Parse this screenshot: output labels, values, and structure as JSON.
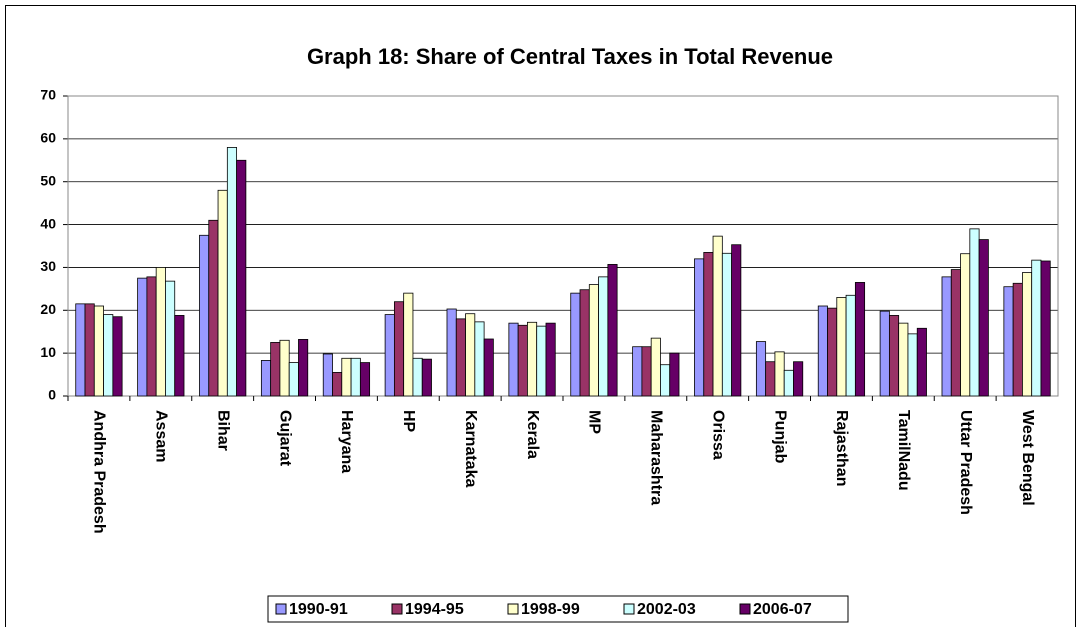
{
  "chart_data": {
    "type": "bar",
    "title": "Graph 18: Share of Central Taxes in Total Revenue",
    "categories": [
      "Andhra Pradesh",
      "Assam",
      "Bihar",
      "Gujarat",
      "Haryana",
      "HP",
      "Karnataka",
      "Kerala",
      "MP",
      "Maharashtra",
      "Orissa",
      "Punjab",
      "Rajasthan",
      "TamilNadu",
      "Uttar Pradesh",
      "West Bengal"
    ],
    "series": [
      {
        "name": "1990-91",
        "color": "#9999ff",
        "values": [
          21.5,
          27.5,
          37.5,
          8.3,
          9.8,
          19,
          20.3,
          17,
          24,
          11.5,
          32,
          12.7,
          21,
          19.8,
          27.8,
          25.5
        ]
      },
      {
        "name": "1994-95",
        "color": "#993366",
        "values": [
          21.5,
          27.8,
          41,
          12.5,
          5.5,
          22,
          18,
          16.5,
          24.8,
          11.5,
          33.5,
          8,
          20.5,
          18.8,
          29.5,
          26.3
        ]
      },
      {
        "name": "1998-99",
        "color": "#ffffcc",
        "values": [
          21,
          30,
          48,
          13,
          8.8,
          24,
          19.2,
          17.2,
          26,
          13.5,
          37.3,
          10.3,
          23,
          17,
          33.2,
          28.8
        ]
      },
      {
        "name": "2002-03",
        "color": "#ccffff",
        "values": [
          19,
          26.8,
          58,
          7.8,
          8.8,
          8.8,
          17.3,
          16.3,
          27.8,
          7.3,
          33.3,
          6,
          23.5,
          14.5,
          39,
          31.7
        ]
      },
      {
        "name": "2006-07",
        "color": "#660066",
        "values": [
          18.5,
          18.8,
          55,
          13.2,
          7.8,
          8.6,
          13.3,
          17,
          30.7,
          10,
          35.3,
          8,
          26.5,
          15.8,
          36.5,
          31.5
        ]
      }
    ],
    "ylim": [
      0,
      70
    ],
    "yticks": [
      0,
      10,
      20,
      30,
      40,
      50,
      60,
      70
    ],
    "grid": true,
    "legend": "bottom"
  }
}
